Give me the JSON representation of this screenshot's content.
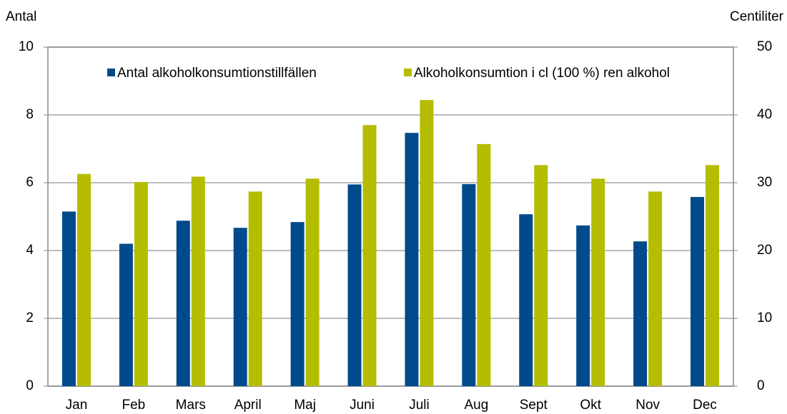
{
  "chart_data": {
    "type": "bar",
    "y_label": "Antal",
    "y2_label": "Centiliter",
    "categories": [
      "Jan",
      "Feb",
      "Mars",
      "April",
      "Maj",
      "Juni",
      "Juli",
      "Aug",
      "Sept",
      "Okt",
      "Nov",
      "Dec"
    ],
    "series": [
      {
        "name": "Antal alkoholkonsumtionstillfällen",
        "color": "#004a8c",
        "values": [
          5.15,
          4.2,
          4.88,
          4.67,
          4.84,
          5.95,
          7.47,
          5.96,
          5.07,
          4.74,
          4.27,
          5.58
        ]
      },
      {
        "name": "Alkoholkonsumtion i cl (100 %) ren alkohol",
        "color": "#b4bd00",
        "axis": "y2",
        "values": [
          31.3,
          30.1,
          30.9,
          28.7,
          30.6,
          38.5,
          42.2,
          35.7,
          32.6,
          30.6,
          28.7,
          32.6
        ]
      }
    ],
    "ylim": [
      0,
      10
    ],
    "yticks": [
      0,
      2,
      4,
      6,
      8,
      10
    ],
    "y2lim": [
      0,
      50
    ],
    "y2ticks": [
      0,
      10,
      20,
      30,
      40,
      50
    ],
    "grid": true,
    "legend": "top"
  }
}
